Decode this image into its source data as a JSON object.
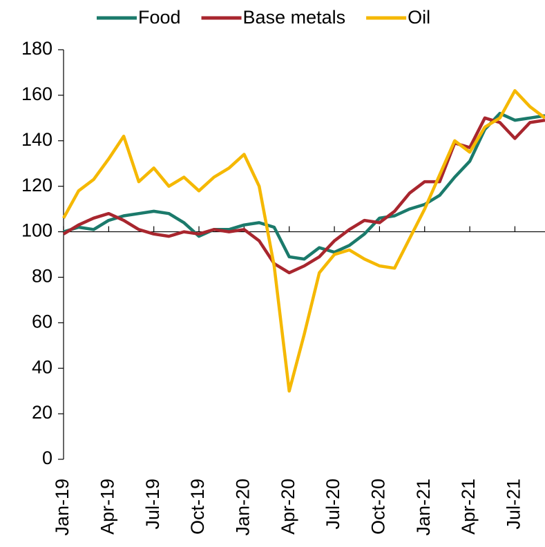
{
  "chart_data": {
    "type": "line",
    "x": [
      "2019-01",
      "2019-02",
      "2019-03",
      "2019-04",
      "2019-05",
      "2019-06",
      "2019-07",
      "2019-08",
      "2019-09",
      "2019-10",
      "2019-11",
      "2019-12",
      "2020-01",
      "2020-02",
      "2020-03",
      "2020-04",
      "2020-05",
      "2020-06",
      "2020-07",
      "2020-08",
      "2020-09",
      "2020-10",
      "2020-11",
      "2020-12",
      "2021-01",
      "2021-02",
      "2021-03",
      "2021-04",
      "2021-05",
      "2021-06",
      "2021-07",
      "2021-08",
      "2021-09"
    ],
    "series": [
      {
        "name": "Food",
        "color": "#1b7a6b",
        "values": [
          100,
          102,
          101,
          105,
          107,
          108,
          109,
          108,
          104,
          98,
          101,
          101,
          103,
          104,
          102,
          89,
          88,
          93,
          91,
          94,
          99,
          106,
          107,
          110,
          112,
          116,
          124,
          131,
          145,
          152,
          149,
          150,
          151
        ]
      },
      {
        "name": "Base metals",
        "color": "#a8262e",
        "values": [
          99,
          103,
          106,
          108,
          105,
          101,
          99,
          98,
          100,
          99,
          101,
          100,
          101,
          96,
          86,
          82,
          85,
          89,
          96,
          101,
          105,
          104,
          109,
          117,
          122,
          122,
          139,
          137,
          150,
          148,
          141,
          148,
          149
        ]
      },
      {
        "name": "Oil",
        "color": "#f5b800",
        "values": [
          106,
          118,
          123,
          132,
          142,
          122,
          128,
          120,
          124,
          118,
          124,
          128,
          134,
          120,
          85,
          30,
          55,
          82,
          90,
          92,
          88,
          85,
          84,
          97,
          110,
          125,
          140,
          135,
          146,
          150,
          162,
          155,
          150
        ]
      }
    ],
    "xlim": [
      "2019-01",
      "2021-09"
    ],
    "xticks": [
      {
        "value": "2019-01",
        "label": "Jan-19"
      },
      {
        "value": "2019-04",
        "label": "Apr-19"
      },
      {
        "value": "2019-07",
        "label": "Jul-19"
      },
      {
        "value": "2019-10",
        "label": "Oct-19"
      },
      {
        "value": "2020-01",
        "label": "Jan-20"
      },
      {
        "value": "2020-04",
        "label": "Apr-20"
      },
      {
        "value": "2020-07",
        "label": "Jul-20"
      },
      {
        "value": "2020-10",
        "label": "Oct-20"
      },
      {
        "value": "2021-01",
        "label": "Jan-21"
      },
      {
        "value": "2021-04",
        "label": "Apr-21"
      },
      {
        "value": "2021-07",
        "label": "Jul-21"
      }
    ],
    "ylim": [
      0,
      180
    ],
    "yticks": [
      0,
      20,
      40,
      60,
      80,
      100,
      120,
      140,
      160,
      180
    ],
    "x_axis_at": 100,
    "legend": "top"
  }
}
